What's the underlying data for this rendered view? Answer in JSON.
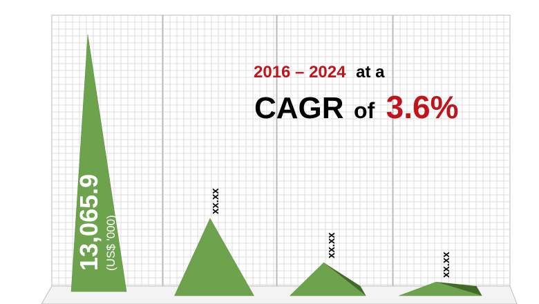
{
  "chart_data": {
    "type": "bar",
    "categories": [
      "",
      "",
      "",
      ""
    ],
    "series": [
      {
        "values": [
          13065.9,
          null,
          null,
          null
        ]
      }
    ],
    "data_labels": [
      "13,065.9",
      "xx.xx",
      "xx.xx",
      "xx.xx"
    ],
    "unit_label": "(US$ '000)",
    "bar_shape": "pyramid",
    "grid": true,
    "colors": {
      "bar_front": "#6da34d",
      "bar_side": "#3f6a28",
      "grid": "#dcdcdc",
      "accent": "#c0141c",
      "text": "#000000"
    },
    "annotation": {
      "period": "2016 – 2024",
      "at_a": "at a",
      "cagr": "CAGR",
      "of": "of",
      "rate": "3.6%"
    }
  }
}
